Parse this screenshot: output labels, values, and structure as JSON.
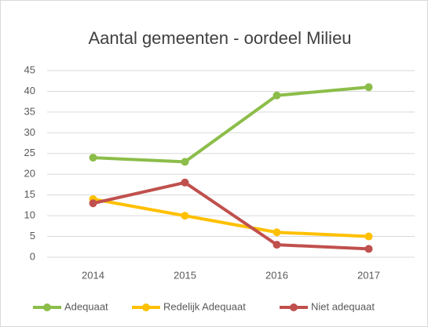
{
  "chart_data": {
    "type": "line",
    "title": "Aantal gemeenten - oordeel Milieu",
    "categories": [
      "2014",
      "2015",
      "2016",
      "2017"
    ],
    "series": [
      {
        "name": "Adequaat",
        "color": "#8cbd4a",
        "values": [
          24,
          23,
          39,
          41
        ]
      },
      {
        "name": "Redelijk Adequaat",
        "color": "#ffc000",
        "values": [
          14,
          10,
          6,
          5
        ]
      },
      {
        "name": "Niet adequaat",
        "color": "#c0504d",
        "values": [
          13,
          18,
          3,
          2
        ]
      }
    ],
    "ylim": [
      0,
      45
    ],
    "yticks": [
      0,
      5,
      10,
      15,
      20,
      25,
      30,
      35,
      40,
      45
    ],
    "grid": true,
    "legend": "bottom"
  }
}
